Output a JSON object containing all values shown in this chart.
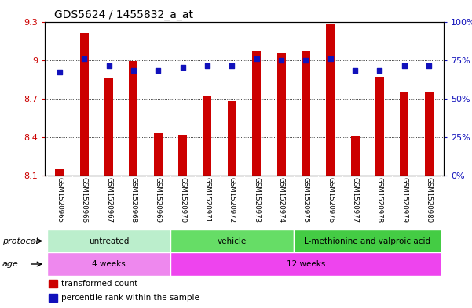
{
  "title": "GDS5624 / 1455832_a_at",
  "samples": [
    "GSM1520965",
    "GSM1520966",
    "GSM1520967",
    "GSM1520968",
    "GSM1520969",
    "GSM1520970",
    "GSM1520971",
    "GSM1520972",
    "GSM1520973",
    "GSM1520974",
    "GSM1520975",
    "GSM1520976",
    "GSM1520977",
    "GSM1520978",
    "GSM1520979",
    "GSM1520980"
  ],
  "transformed_count": [
    8.15,
    9.21,
    8.86,
    8.99,
    8.43,
    8.42,
    8.72,
    8.68,
    9.07,
    9.06,
    9.07,
    9.28,
    8.41,
    8.87,
    8.75,
    8.75
  ],
  "percentile_pct": [
    67,
    76,
    71,
    68,
    68,
    70,
    71,
    71,
    76,
    75,
    75,
    76,
    68,
    68,
    71,
    71
  ],
  "ylim_min": 8.1,
  "ylim_max": 9.3,
  "yticks": [
    8.1,
    8.4,
    8.7,
    9.0,
    9.3
  ],
  "ytick_labels": [
    "8.1",
    "8.4",
    "8.7",
    "9",
    "9.3"
  ],
  "y2ticks_pct": [
    0,
    25,
    50,
    75,
    100
  ],
  "bar_color": "#cc0000",
  "dot_color": "#1111bb",
  "bar_width": 0.35,
  "proto_groups": [
    {
      "label": "untreated",
      "start": 0,
      "end": 4,
      "color": "#bbeecc"
    },
    {
      "label": "vehicle",
      "start": 5,
      "end": 9,
      "color": "#66dd66"
    },
    {
      "label": "L-methionine and valproic acid",
      "start": 10,
      "end": 15,
      "color": "#44cc44"
    }
  ],
  "age_groups": [
    {
      "label": "4 weeks",
      "start": 0,
      "end": 4,
      "color": "#ee88ee"
    },
    {
      "label": "12 weeks",
      "start": 5,
      "end": 15,
      "color": "#ee44ee"
    }
  ],
  "legend_items": [
    {
      "label": "transformed count",
      "color": "#cc0000",
      "marker": "s"
    },
    {
      "label": "percentile rank within the sample",
      "color": "#1111bb",
      "marker": "s"
    }
  ],
  "left_label_protocol": "protocol",
  "left_label_age": "age",
  "title_fontsize": 10,
  "left_tick_color": "#cc0000",
  "right_tick_color": "#1111bb",
  "xtick_bg": "#c8c8c8",
  "main_bg": "#ffffff",
  "dot_size": 22
}
